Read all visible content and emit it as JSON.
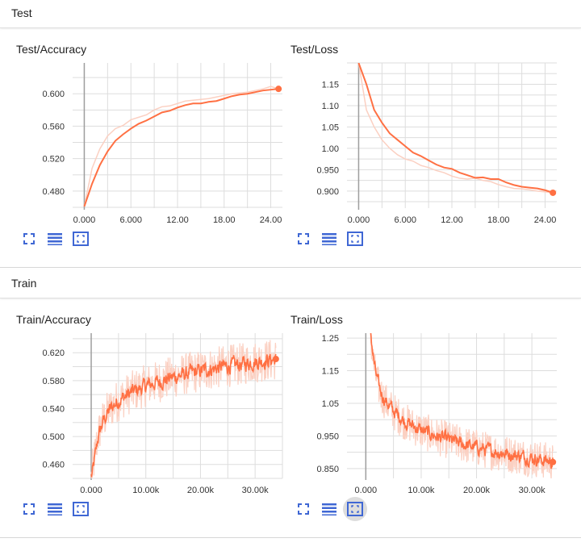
{
  "sections": [
    {
      "title": "Test"
    },
    {
      "title": "Train"
    }
  ],
  "colors": {
    "series": "#ff7043",
    "series_raw": "#fbd0c2",
    "grid": "#dddddd",
    "zero_axis": "#9e9e9e",
    "icon": "#3f67d4"
  },
  "toolbar_icons": [
    "fullscreen-icon",
    "toggle-log-scale-icon",
    "fit-domain-icon"
  ],
  "chart_data": [
    {
      "type": "line",
      "title": "Test/Accuracy",
      "xlim": [
        -1.5,
        25.5
      ],
      "ylim": [
        0.459,
        0.638
      ],
      "xticks": [
        0,
        6,
        12,
        18,
        24
      ],
      "xtick_labels": [
        "0.000",
        "6.000",
        "12.00",
        "18.00",
        "24.00"
      ],
      "yticks": [
        0.48,
        0.52,
        0.56,
        0.6
      ],
      "ytick_labels": [
        "0.480",
        "0.520",
        "0.560",
        "0.600"
      ],
      "grid": true,
      "series": [
        {
          "x": [
            0,
            1,
            2,
            3,
            4,
            5,
            6,
            7,
            8,
            9,
            10,
            11,
            12,
            13,
            14,
            15,
            16,
            17,
            18,
            19,
            20,
            21,
            22,
            23,
            24,
            25
          ],
          "y": [
            0.461,
            0.508,
            0.532,
            0.548,
            0.557,
            0.561,
            0.568,
            0.571,
            0.574,
            0.58,
            0.584,
            0.585,
            0.588,
            0.591,
            0.592,
            0.593,
            0.594,
            0.596,
            0.598,
            0.6,
            0.601,
            0.602,
            0.604,
            0.606,
            0.609,
            0.606
          ]
        },
        {
          "x": [
            0,
            1,
            2,
            3,
            4,
            5,
            6,
            7,
            8,
            9,
            10,
            11,
            12,
            13,
            14,
            15,
            16,
            17,
            18,
            19,
            20,
            21,
            22,
            23,
            24,
            25
          ],
          "y": [
            0.461,
            0.489,
            0.512,
            0.529,
            0.542,
            0.55,
            0.557,
            0.563,
            0.567,
            0.572,
            0.577,
            0.579,
            0.583,
            0.586,
            0.588,
            0.588,
            0.59,
            0.591,
            0.594,
            0.597,
            0.599,
            0.6,
            0.602,
            0.604,
            0.605,
            0.606
          ]
        }
      ]
    },
    {
      "type": "line",
      "title": "Test/Loss",
      "xlim": [
        -1.5,
        25.5
      ],
      "ylim": [
        0.86,
        1.2
      ],
      "xticks": [
        0,
        6,
        12,
        18,
        24
      ],
      "xtick_labels": [
        "0.000",
        "6.000",
        "12.00",
        "18.00",
        "24.00"
      ],
      "yticks": [
        0.9,
        0.95,
        1.0,
        1.05,
        1.1,
        1.15
      ],
      "ytick_labels": [
        "0.900",
        "0.950",
        "1.00",
        "1.05",
        "1.10",
        "1.15"
      ],
      "grid": true,
      "series": [
        {
          "x": [
            0,
            1,
            2,
            3,
            4,
            5,
            6,
            7,
            8,
            9,
            10,
            11,
            12,
            13,
            14,
            15,
            16,
            17,
            18,
            19,
            20,
            21,
            22,
            23,
            24,
            25
          ],
          "y": [
            1.2,
            1.09,
            1.05,
            1.02,
            1.0,
            0.985,
            0.975,
            0.97,
            0.96,
            0.955,
            0.948,
            0.943,
            0.935,
            0.93,
            0.928,
            0.93,
            0.925,
            0.922,
            0.915,
            0.91,
            0.906,
            0.905,
            0.903,
            0.9,
            0.898,
            0.896
          ]
        },
        {
          "x": [
            0,
            1,
            2,
            3,
            4,
            5,
            6,
            7,
            8,
            9,
            10,
            11,
            12,
            13,
            14,
            15,
            16,
            17,
            18,
            19,
            20,
            21,
            22,
            23,
            24,
            25
          ],
          "y": [
            1.2,
            1.15,
            1.09,
            1.06,
            1.035,
            1.02,
            1.005,
            0.99,
            0.982,
            0.972,
            0.962,
            0.955,
            0.952,
            0.943,
            0.937,
            0.931,
            0.932,
            0.928,
            0.928,
            0.92,
            0.914,
            0.91,
            0.908,
            0.906,
            0.902,
            0.896
          ]
        }
      ]
    },
    {
      "type": "line",
      "title": "Train/Accuracy",
      "xlim": [
        -3400,
        35000
      ],
      "ylim": [
        0.44,
        0.648
      ],
      "xticks": [
        0,
        10000,
        20000,
        30000
      ],
      "xtick_labels": [
        "0.000",
        "10.00k",
        "20.00k",
        "30.00k"
      ],
      "yticks": [
        0.46,
        0.5,
        0.54,
        0.58,
        0.62
      ],
      "ytick_labels": [
        "0.460",
        "0.500",
        "0.540",
        "0.580",
        "0.620"
      ],
      "grid": true,
      "series": [
        {
          "name": "",
          "x": [
            0,
            1200,
            2000,
            3000,
            4000,
            5000,
            6000,
            7000,
            8000,
            9000,
            10000,
            11000,
            12000,
            13000,
            14000,
            15000,
            16000,
            17000,
            18000,
            19000,
            20000,
            21000,
            22000,
            23000,
            24000,
            25000,
            26000,
            27000,
            28000,
            29000,
            30000,
            31000,
            32000,
            33000,
            33800
          ],
          "y": [
            0.44,
            0.5,
            0.52,
            0.535,
            0.545,
            0.552,
            0.557,
            0.562,
            0.566,
            0.569,
            0.573,
            0.575,
            0.578,
            0.58,
            0.583,
            0.585,
            0.587,
            0.589,
            0.591,
            0.592,
            0.594,
            0.596,
            0.597,
            0.598,
            0.6,
            0.601,
            0.602,
            0.603,
            0.604,
            0.606,
            0.607,
            0.608,
            0.609,
            0.61,
            0.611
          ]
        }
      ]
    },
    {
      "type": "line",
      "title": "Train/Loss",
      "xlim": [
        -3400,
        34500
      ],
      "ylim": [
        0.82,
        1.265
      ],
      "xticks": [
        0,
        10000,
        20000,
        30000
      ],
      "xtick_labels": [
        "0.000",
        "10.00k",
        "20.00k",
        "30.00k"
      ],
      "yticks": [
        0.85,
        0.95,
        1.05,
        1.15,
        1.25
      ],
      "ytick_labels": [
        "0.850",
        "0.950",
        "1.05",
        "1.15",
        "1.25"
      ],
      "grid": true,
      "series": [
        {
          "name": "",
          "x": [
            800,
            1200,
            1600,
            2000,
            2500,
            3000,
            4000,
            5000,
            6000,
            7000,
            8000,
            9000,
            10000,
            11000,
            12000,
            13000,
            14000,
            15000,
            16000,
            17000,
            18000,
            19000,
            20000,
            21000,
            22000,
            23000,
            24000,
            25000,
            26000,
            27000,
            28000,
            29000,
            30000,
            31000,
            32000,
            33000,
            33800
          ],
          "y": [
            1.265,
            1.2,
            1.15,
            1.12,
            1.09,
            1.07,
            1.045,
            1.025,
            1.01,
            0.995,
            0.985,
            0.975,
            0.967,
            0.96,
            0.953,
            0.947,
            0.942,
            0.937,
            0.932,
            0.927,
            0.922,
            0.918,
            0.914,
            0.91,
            0.906,
            0.903,
            0.9,
            0.897,
            0.894,
            0.891,
            0.888,
            0.885,
            0.882,
            0.879,
            0.876,
            0.873,
            0.87
          ]
        }
      ]
    }
  ]
}
